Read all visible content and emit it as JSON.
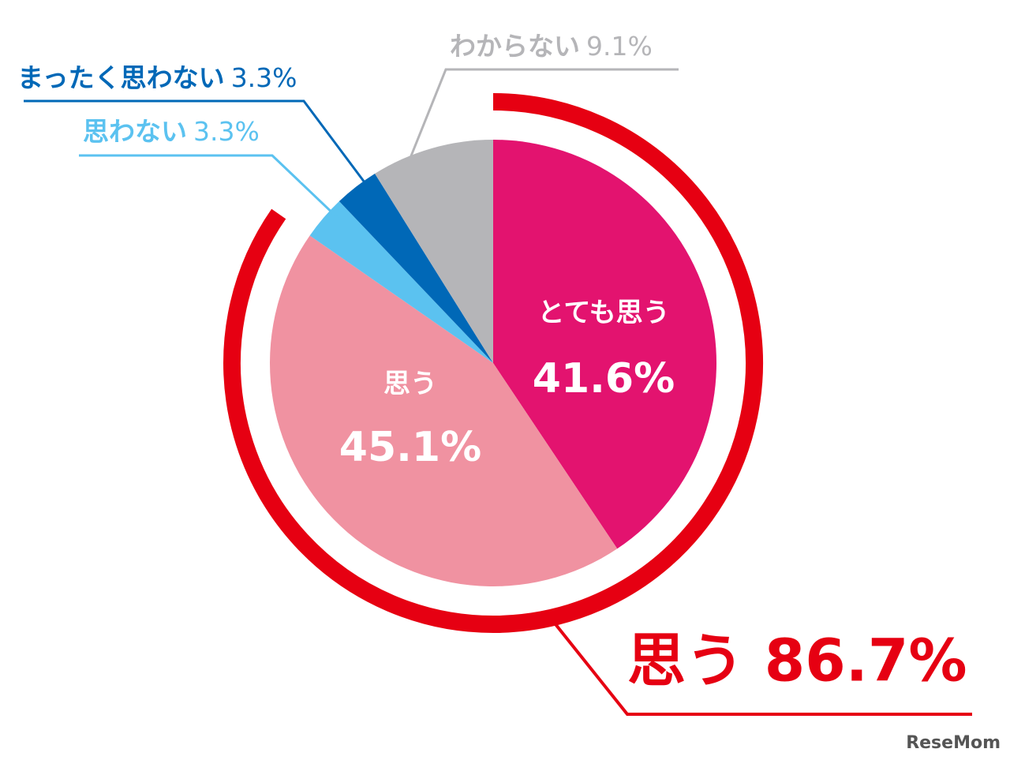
{
  "chart_data": {
    "type": "pie",
    "categories": [
      "とても思う",
      "思う",
      "思わない",
      "まったく思わない",
      "わからない"
    ],
    "values": [
      41.6,
      45.1,
      3.3,
      3.3,
      9.1
    ],
    "value_labels": [
      "41.6%",
      "45.1%",
      "3.3%",
      "3.3%",
      "9.1%"
    ],
    "colors": [
      "#e3136f",
      "#f092a1",
      "#5bc2f0",
      "#0068b7",
      "#b5b5b8"
    ],
    "annotation": "思う 86.7%",
    "annotation_color": "#e60012",
    "watermark": "ReseMom"
  }
}
